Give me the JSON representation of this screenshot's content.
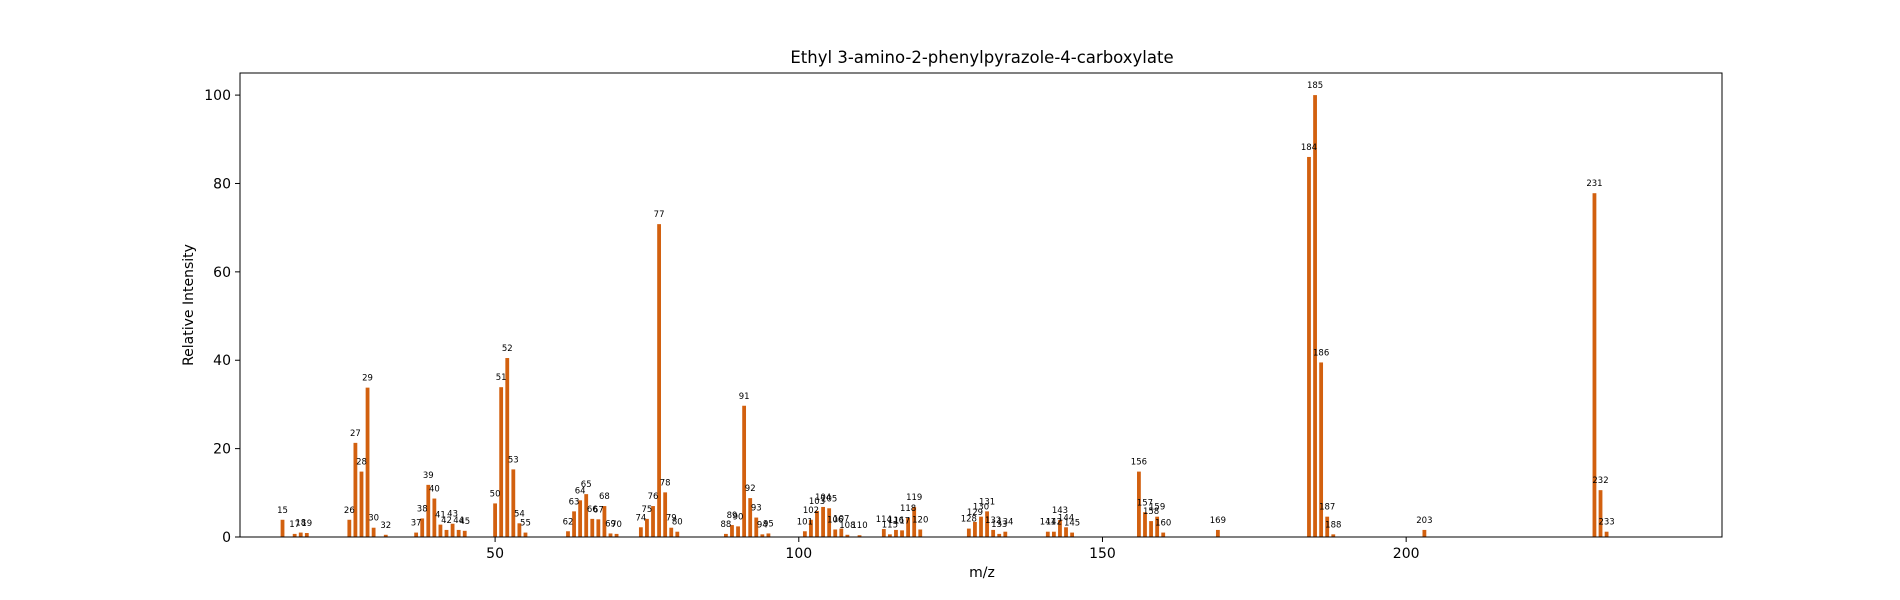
{
  "chart_data": {
    "type": "bar",
    "title": "Ethyl 3-amino-2-phenylpyrazole-4-carboxylate",
    "xlabel": "m/z",
    "ylabel": "Relative Intensity",
    "xlim": [
      8,
      252
    ],
    "ylim": [
      0,
      105
    ],
    "xticks": [
      50,
      100,
      150,
      200
    ],
    "yticks": [
      0,
      20,
      40,
      60,
      80,
      100
    ],
    "grid": false,
    "bar_color": "#d2600f",
    "peaks": [
      {
        "mz": 15,
        "intensity": 3.9
      },
      {
        "mz": 17,
        "intensity": 0.7
      },
      {
        "mz": 18,
        "intensity": 1.0
      },
      {
        "mz": 19,
        "intensity": 0.9
      },
      {
        "mz": 26,
        "intensity": 3.9
      },
      {
        "mz": 27,
        "intensity": 21.3
      },
      {
        "mz": 28,
        "intensity": 14.8
      },
      {
        "mz": 29,
        "intensity": 33.8
      },
      {
        "mz": 30,
        "intensity": 2.1
      },
      {
        "mz": 32,
        "intensity": 0.5
      },
      {
        "mz": 37,
        "intensity": 1.0
      },
      {
        "mz": 38,
        "intensity": 4.2
      },
      {
        "mz": 39,
        "intensity": 11.8
      },
      {
        "mz": 40,
        "intensity": 8.7
      },
      {
        "mz": 41,
        "intensity": 2.8
      },
      {
        "mz": 42,
        "intensity": 1.6
      },
      {
        "mz": 43,
        "intensity": 3.0
      },
      {
        "mz": 44,
        "intensity": 1.6
      },
      {
        "mz": 45,
        "intensity": 1.4
      },
      {
        "mz": 50,
        "intensity": 7.6
      },
      {
        "mz": 51,
        "intensity": 33.9
      },
      {
        "mz": 52,
        "intensity": 40.5
      },
      {
        "mz": 53,
        "intensity": 15.3
      },
      {
        "mz": 54,
        "intensity": 3.1
      },
      {
        "mz": 55,
        "intensity": 1.0
      },
      {
        "mz": 62,
        "intensity": 1.3
      },
      {
        "mz": 63,
        "intensity": 5.8
      },
      {
        "mz": 64,
        "intensity": 8.3
      },
      {
        "mz": 65,
        "intensity": 9.7
      },
      {
        "mz": 66,
        "intensity": 4.1
      },
      {
        "mz": 67,
        "intensity": 4.0
      },
      {
        "mz": 68,
        "intensity": 7.0
      },
      {
        "mz": 69,
        "intensity": 0.8
      },
      {
        "mz": 70,
        "intensity": 0.7
      },
      {
        "mz": 74,
        "intensity": 2.2
      },
      {
        "mz": 75,
        "intensity": 4.1
      },
      {
        "mz": 76,
        "intensity": 7.0
      },
      {
        "mz": 77,
        "intensity": 70.8
      },
      {
        "mz": 78,
        "intensity": 10.1
      },
      {
        "mz": 79,
        "intensity": 2.1
      },
      {
        "mz": 80,
        "intensity": 1.2
      },
      {
        "mz": 88,
        "intensity": 0.7
      },
      {
        "mz": 89,
        "intensity": 2.7
      },
      {
        "mz": 90,
        "intensity": 2.4
      },
      {
        "mz": 91,
        "intensity": 29.7
      },
      {
        "mz": 92,
        "intensity": 8.8
      },
      {
        "mz": 93,
        "intensity": 4.4
      },
      {
        "mz": 94,
        "intensity": 0.6
      },
      {
        "mz": 95,
        "intensity": 0.8
      },
      {
        "mz": 101,
        "intensity": 1.3
      },
      {
        "mz": 102,
        "intensity": 3.9
      },
      {
        "mz": 103,
        "intensity": 5.9
      },
      {
        "mz": 104,
        "intensity": 6.8
      },
      {
        "mz": 105,
        "intensity": 6.5
      },
      {
        "mz": 106,
        "intensity": 1.7
      },
      {
        "mz": 107,
        "intensity": 1.9
      },
      {
        "mz": 108,
        "intensity": 0.5
      },
      {
        "mz": 110,
        "intensity": 0.4
      },
      {
        "mz": 114,
        "intensity": 1.8
      },
      {
        "mz": 115,
        "intensity": 0.6
      },
      {
        "mz": 116,
        "intensity": 1.6
      },
      {
        "mz": 117,
        "intensity": 1.5
      },
      {
        "mz": 118,
        "intensity": 4.3
      },
      {
        "mz": 119,
        "intensity": 6.8
      },
      {
        "mz": 120,
        "intensity": 1.7
      },
      {
        "mz": 128,
        "intensity": 1.9
      },
      {
        "mz": 129,
        "intensity": 3.4
      },
      {
        "mz": 130,
        "intensity": 4.6
      },
      {
        "mz": 131,
        "intensity": 5.8
      },
      {
        "mz": 132,
        "intensity": 1.6
      },
      {
        "mz": 133,
        "intensity": 0.7
      },
      {
        "mz": 134,
        "intensity": 1.2
      },
      {
        "mz": 141,
        "intensity": 1.2
      },
      {
        "mz": 142,
        "intensity": 1.2
      },
      {
        "mz": 143,
        "intensity": 3.8
      },
      {
        "mz": 144,
        "intensity": 2.2
      },
      {
        "mz": 145,
        "intensity": 1.0
      },
      {
        "mz": 156,
        "intensity": 14.8
      },
      {
        "mz": 157,
        "intensity": 5.6
      },
      {
        "mz": 158,
        "intensity": 3.6
      },
      {
        "mz": 159,
        "intensity": 4.6
      },
      {
        "mz": 160,
        "intensity": 1.0
      },
      {
        "mz": 169,
        "intensity": 1.6
      },
      {
        "mz": 184,
        "intensity": 86.0
      },
      {
        "mz": 185,
        "intensity": 100.0
      },
      {
        "mz": 186,
        "intensity": 39.5
      },
      {
        "mz": 187,
        "intensity": 4.6
      },
      {
        "mz": 188,
        "intensity": 0.6
      },
      {
        "mz": 203,
        "intensity": 1.6
      },
      {
        "mz": 231,
        "intensity": 77.8
      },
      {
        "mz": 232,
        "intensity": 10.6
      },
      {
        "mz": 233,
        "intensity": 1.2
      }
    ]
  }
}
